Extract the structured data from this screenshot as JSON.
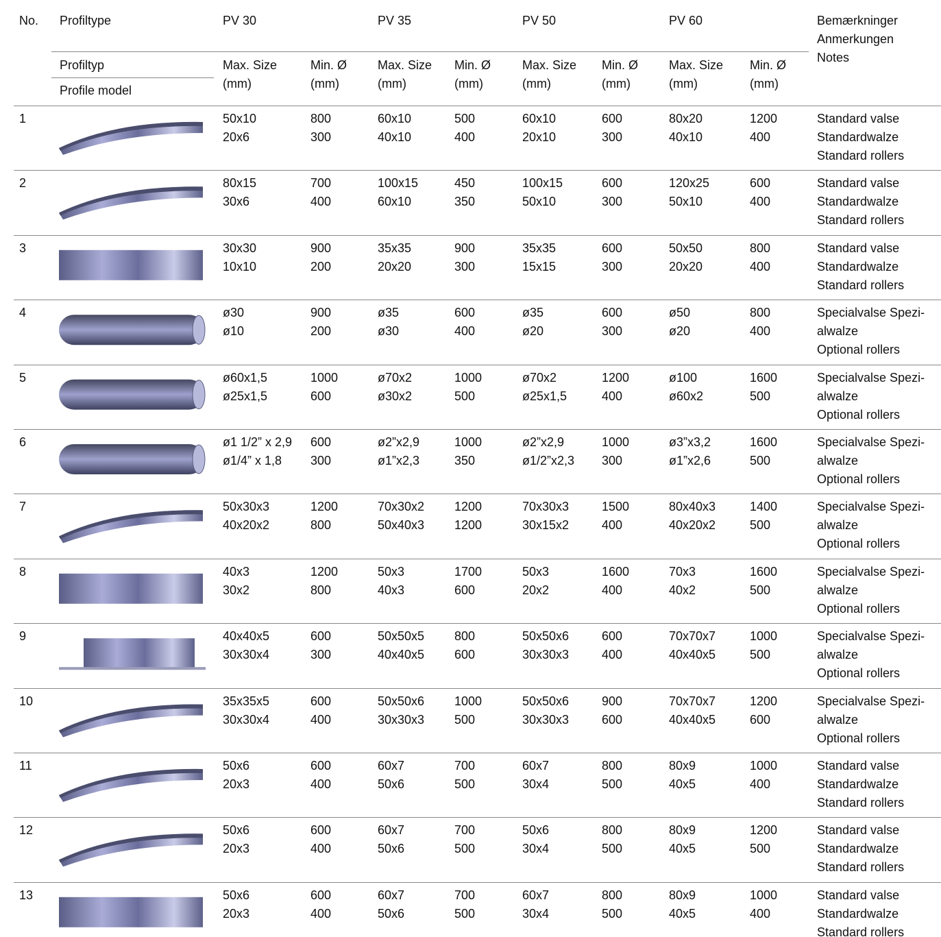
{
  "header": {
    "no": "No.",
    "profiltype": "Profiltype",
    "profiltyp": "Profiltyp",
    "profile_model": "Profile model",
    "groups": [
      "PV 30",
      "PV 35",
      "PV 50",
      "PV 60"
    ],
    "max": "Max. Size",
    "min": "Min. Ø",
    "unit": "(mm)",
    "notes": [
      "Bemærkninger",
      "Anmerkungen",
      "Notes"
    ]
  },
  "rows": [
    {
      "no": "1",
      "cells": [
        [
          "50x10",
          "20x6"
        ],
        [
          "800",
          "300"
        ],
        [
          "60x10",
          "40x10"
        ],
        [
          "500",
          "400"
        ],
        [
          "60x10",
          "20x10"
        ],
        [
          "600",
          "300"
        ],
        [
          "80x20",
          "40x10"
        ],
        [
          "1200",
          "400"
        ]
      ],
      "notes": [
        "Standard valse",
        "Standardwalze",
        "Standard rollers"
      ]
    },
    {
      "no": "2",
      "cells": [
        [
          "80x15",
          "30x6"
        ],
        [
          "700",
          "400"
        ],
        [
          "100x15",
          "60x10"
        ],
        [
          "450",
          "350"
        ],
        [
          "100x15",
          "50x10"
        ],
        [
          "600",
          "300"
        ],
        [
          "120x25",
          "50x10"
        ],
        [
          "600",
          "400"
        ]
      ],
      "notes": [
        "Standard valse",
        "Standardwalze",
        "Standard rollers"
      ]
    },
    {
      "no": "3",
      "cells": [
        [
          "30x30",
          "10x10"
        ],
        [
          "900",
          "200"
        ],
        [
          "35x35",
          "20x20"
        ],
        [
          "900",
          "300"
        ],
        [
          "35x35",
          "15x15"
        ],
        [
          "600",
          "300"
        ],
        [
          "50x50",
          "20x20"
        ],
        [
          "800",
          "400"
        ]
      ],
      "notes": [
        "Standard valse",
        "Standardwalze",
        "Standard rollers"
      ]
    },
    {
      "no": "4",
      "cells": [
        [
          "ø30",
          "ø10"
        ],
        [
          "900",
          "200"
        ],
        [
          "ø35",
          "ø30"
        ],
        [
          "600",
          "400"
        ],
        [
          "ø35",
          "ø20"
        ],
        [
          "600",
          "300"
        ],
        [
          "ø50",
          "ø20"
        ],
        [
          "800",
          "400"
        ]
      ],
      "notes": [
        "Specialvalse Spezi-",
        "alwalze",
        "Optional rollers"
      ]
    },
    {
      "no": "5",
      "cells": [
        [
          "ø60x1,5",
          "ø25x1,5"
        ],
        [
          "1000",
          "600"
        ],
        [
          "ø70x2",
          "ø30x2"
        ],
        [
          "1000",
          "500"
        ],
        [
          "ø70x2",
          "ø25x1,5"
        ],
        [
          "1200",
          "400"
        ],
        [
          "ø100",
          "ø60x2"
        ],
        [
          "1600",
          "500"
        ]
      ],
      "notes": [
        "Specialvalse Spezi-",
        "alwalze",
        "Optional rollers"
      ]
    },
    {
      "no": "6",
      "cells": [
        [
          "ø1 1/2” x 2,9",
          "ø1/4” x 1,8"
        ],
        [
          "600",
          "300"
        ],
        [
          "ø2”x2,9",
          "ø1”x2,3"
        ],
        [
          "1000",
          "350"
        ],
        [
          "ø2”x2,9",
          "ø1/2”x2,3"
        ],
        [
          "1000",
          "300"
        ],
        [
          "ø3”x3,2",
          "ø1”x2,6"
        ],
        [
          "1600",
          "500"
        ]
      ],
      "notes": [
        "Specialvalse Spezi-",
        "alwalze",
        "Optional rollers"
      ]
    },
    {
      "no": "7",
      "cells": [
        [
          "50x30x3",
          "40x20x2"
        ],
        [
          "1200",
          "800"
        ],
        [
          "70x30x2",
          "50x40x3"
        ],
        [
          "1200",
          "1200"
        ],
        [
          "70x30x3",
          "30x15x2"
        ],
        [
          "1500",
          "400"
        ],
        [
          "80x40x3",
          "40x20x2"
        ],
        [
          "1400",
          "500"
        ]
      ],
      "notes": [
        "Specialvalse Spezi-",
        "alwalze",
        "Optional rollers"
      ]
    },
    {
      "no": "8",
      "cells": [
        [
          "40x3",
          "30x2"
        ],
        [
          "1200",
          "800"
        ],
        [
          "50x3",
          "40x3"
        ],
        [
          "1700",
          "600"
        ],
        [
          "50x3",
          "20x2"
        ],
        [
          "1600",
          "400"
        ],
        [
          "70x3",
          "40x2"
        ],
        [
          "1600",
          "500"
        ]
      ],
      "notes": [
        "Specialvalse Spezi-",
        "alwalze",
        "Optional rollers"
      ]
    },
    {
      "no": "9",
      "cells": [
        [
          "40x40x5",
          "30x30x4"
        ],
        [
          "600",
          "300"
        ],
        [
          "50x50x5",
          "40x40x5"
        ],
        [
          "800",
          "600"
        ],
        [
          "50x50x6",
          "30x30x3"
        ],
        [
          "600",
          "400"
        ],
        [
          "70x70x7",
          "40x40x5"
        ],
        [
          "1000",
          "500"
        ]
      ],
      "notes": [
        "Specialvalse Spezi-",
        "alwalze",
        "Optional rollers"
      ]
    },
    {
      "no": "10",
      "cells": [
        [
          "35x35x5",
          "30x30x4"
        ],
        [
          "600",
          "400"
        ],
        [
          "50x50x6",
          "30x30x3"
        ],
        [
          "1000",
          "500"
        ],
        [
          "50x50x6",
          "30x30x3"
        ],
        [
          "900",
          "600"
        ],
        [
          "70x70x7",
          "40x40x5"
        ],
        [
          "1200",
          "600"
        ]
      ],
      "notes": [
        "Specialvalse Spezi-",
        "alwalze",
        "Optional rollers"
      ]
    },
    {
      "no": "11",
      "cells": [
        [
          "50x6",
          "20x3"
        ],
        [
          "600",
          "400"
        ],
        [
          "60x7",
          "50x6"
        ],
        [
          "700",
          "500"
        ],
        [
          "60x7",
          "30x4"
        ],
        [
          "800",
          "500"
        ],
        [
          "80x9",
          "40x5"
        ],
        [
          "1000",
          "400"
        ]
      ],
      "notes": [
        "Standard valse",
        "Standardwalze",
        "Standard rollers"
      ]
    },
    {
      "no": "12",
      "cells": [
        [
          "50x6",
          "20x3"
        ],
        [
          "600",
          "400"
        ],
        [
          "60x7",
          "50x6"
        ],
        [
          "700",
          "500"
        ],
        [
          "50x6",
          "30x4"
        ],
        [
          "800",
          "500"
        ],
        [
          "80x9",
          "40x5"
        ],
        [
          "1200",
          "500"
        ]
      ],
      "notes": [
        "Standard valse",
        "Standardwalze",
        "Standard rollers"
      ]
    },
    {
      "no": "13",
      "cells": [
        [
          "50x6",
          "20x3"
        ],
        [
          "600",
          "400"
        ],
        [
          "60x7",
          "50x6"
        ],
        [
          "700",
          "500"
        ],
        [
          "60x7",
          "30x4"
        ],
        [
          "800",
          "500"
        ],
        [
          "80x9",
          "40x5"
        ],
        [
          "1000",
          "400"
        ]
      ],
      "notes": [
        "Standard valse",
        "Standardwalze",
        "Standard rollers"
      ]
    }
  ]
}
